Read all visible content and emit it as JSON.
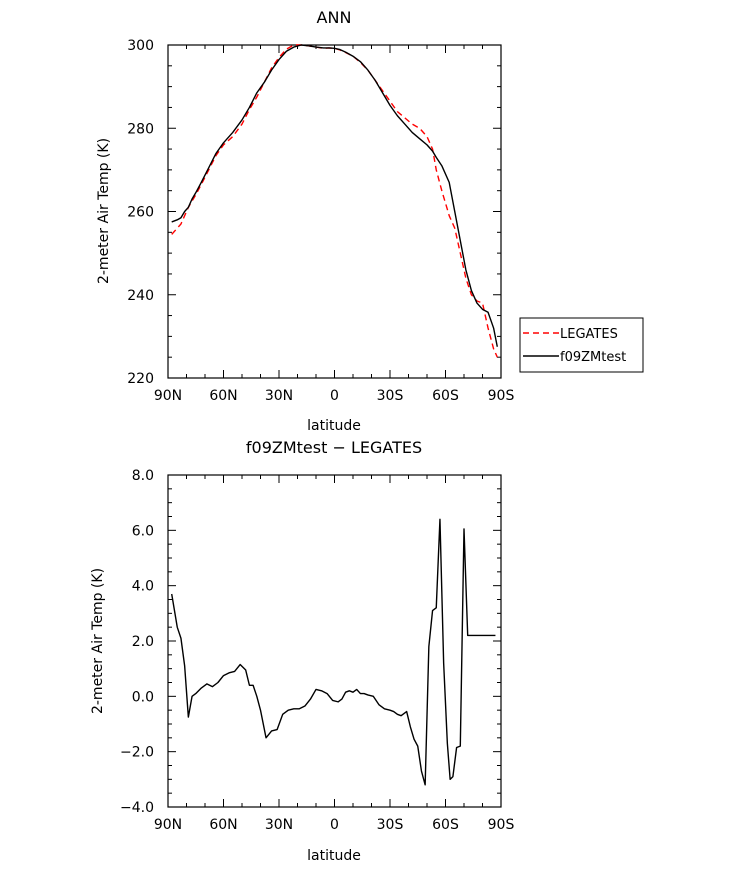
{
  "chart_data": [
    {
      "type": "line",
      "title": "ANN",
      "xlabel": "latitude",
      "ylabel": "2-meter Air Temp (K)",
      "xlim": [
        90,
        -90
      ],
      "ylim": [
        220,
        300
      ],
      "x_ticks": [
        {
          "value": 90,
          "label": "90N"
        },
        {
          "value": 60,
          "label": "60N"
        },
        {
          "value": 30,
          "label": "30N"
        },
        {
          "value": 0,
          "label": "0"
        },
        {
          "value": -30,
          "label": "30S"
        },
        {
          "value": -60,
          "label": "60S"
        },
        {
          "value": -90,
          "label": "90S"
        }
      ],
      "y_ticks": [
        {
          "value": 300,
          "label": "300"
        },
        {
          "value": 280,
          "label": "280"
        },
        {
          "value": 260,
          "label": "260"
        },
        {
          "value": 240,
          "label": "240"
        },
        {
          "value": 220,
          "label": "220"
        }
      ],
      "grid": false,
      "legend": "right",
      "series": [
        {
          "name": "LEGATES",
          "color": "#ff0000",
          "dash": "dashed",
          "x": [
            88,
            85,
            83,
            81,
            79,
            77,
            75,
            72,
            68,
            64,
            60,
            55,
            50,
            46,
            42,
            38,
            34,
            30,
            26,
            22,
            18,
            14,
            10,
            6,
            3,
            0,
            -3,
            -6,
            -10,
            -14,
            -18,
            -22,
            -26,
            -30,
            -34,
            -38,
            -42,
            -46,
            -50,
            -53,
            -55,
            -58,
            -62,
            -65,
            -68,
            -71,
            -74,
            -77,
            -80,
            -83,
            -86,
            -88
          ],
          "y": [
            254.5,
            256,
            257,
            259,
            261,
            262.5,
            264,
            266.5,
            270,
            273.5,
            276,
            278,
            281,
            284.5,
            287.5,
            291,
            294.5,
            297,
            299,
            300,
            300,
            299.8,
            299.5,
            299.2,
            299.3,
            299.2,
            298.8,
            298.2,
            297.3,
            295.8,
            294,
            291.5,
            289,
            286.5,
            284,
            282.5,
            281,
            280,
            278,
            275,
            270,
            265,
            259,
            256,
            250,
            244,
            240,
            238.5,
            238,
            232,
            227,
            225
          ]
        },
        {
          "name": "f09ZMtest",
          "color": "#000000",
          "dash": "solid",
          "x": [
            88,
            85,
            83,
            81,
            79,
            77,
            75,
            72,
            68,
            64,
            60,
            55,
            50,
            46,
            42,
            38,
            34,
            30,
            26,
            22,
            18,
            14,
            10,
            6,
            3,
            0,
            -3,
            -6,
            -10,
            -14,
            -18,
            -22,
            -26,
            -30,
            -34,
            -38,
            -42,
            -46,
            -50,
            -53,
            -55,
            -58,
            -62,
            -65,
            -68,
            -71,
            -74,
            -77,
            -80,
            -83,
            -86,
            -88
          ],
          "y": [
            257.5,
            258,
            258.5,
            260,
            261,
            263,
            264.5,
            267,
            270.5,
            274,
            276.5,
            279,
            282,
            285,
            288.5,
            291,
            294,
            296.5,
            298.5,
            299.5,
            300,
            299.8,
            299.5,
            299.3,
            299.3,
            299.2,
            298.9,
            298.3,
            297.3,
            296,
            294,
            291.5,
            288.5,
            285.5,
            283,
            281,
            279,
            277.5,
            276,
            274.5,
            273,
            271,
            267,
            260,
            253,
            246,
            241,
            238,
            236.5,
            235.8,
            232,
            227.5
          ]
        }
      ]
    },
    {
      "type": "line",
      "title": "f09ZMtest − LEGATES",
      "xlabel": "latitude",
      "ylabel": "2-meter Air Temp (K)",
      "xlim": [
        90,
        -90
      ],
      "ylim": [
        -4,
        8
      ],
      "x_ticks": [
        {
          "value": 90,
          "label": "90N"
        },
        {
          "value": 60,
          "label": "60N"
        },
        {
          "value": 30,
          "label": "30N"
        },
        {
          "value": 0,
          "label": "0"
        },
        {
          "value": -30,
          "label": "30S"
        },
        {
          "value": -60,
          "label": "60S"
        },
        {
          "value": -90,
          "label": "90S"
        }
      ],
      "y_ticks": [
        {
          "value": 8,
          "label": "8.0"
        },
        {
          "value": 6,
          "label": "6.0"
        },
        {
          "value": 4,
          "label": "4.0"
        },
        {
          "value": 2,
          "label": "2.0"
        },
        {
          "value": 0,
          "label": "0.0"
        },
        {
          "value": -2,
          "label": "−2.0"
        },
        {
          "value": -4,
          "label": "−4.0"
        }
      ],
      "grid": false,
      "series": [
        {
          "color": "#000000",
          "dash": "solid",
          "x": [
            88,
            85,
            83,
            81,
            79,
            77,
            75,
            72,
            69,
            66,
            63,
            60,
            57,
            54,
            51,
            48,
            46,
            44,
            42,
            40,
            37,
            34,
            31,
            28,
            25,
            22,
            19,
            16,
            13,
            10,
            7,
            4,
            1,
            -2,
            -4,
            -6,
            -8,
            -10,
            -12,
            -14,
            -16,
            -18,
            -21,
            -24,
            -27,
            -30,
            -32,
            -34,
            -36,
            -39,
            -41,
            -43,
            -45,
            -47,
            -49,
            -51,
            -53,
            -55,
            -57,
            -59,
            -61,
            -62.5,
            -64,
            -66,
            -68,
            -70,
            -72,
            -74,
            -76,
            -79,
            -81,
            -83,
            -85,
            -87
          ],
          "y": [
            3.7,
            2.5,
            2.1,
            1.1,
            -0.75,
            0.0,
            0.1,
            0.3,
            0.45,
            0.35,
            0.5,
            0.75,
            0.85,
            0.9,
            1.15,
            0.95,
            0.4,
            0.4,
            0.0,
            -0.5,
            -1.5,
            -1.25,
            -1.2,
            -0.65,
            -0.5,
            -0.45,
            -0.45,
            -0.35,
            -0.1,
            0.25,
            0.2,
            0.1,
            -0.15,
            -0.2,
            -0.1,
            0.15,
            0.2,
            0.15,
            0.25,
            0.1,
            0.1,
            0.05,
            0.0,
            -0.3,
            -0.45,
            -0.5,
            -0.55,
            -0.65,
            -0.7,
            -0.55,
            -1.1,
            -1.55,
            -1.8,
            -2.7,
            -3.2,
            1.8,
            3.1,
            3.2,
            6.4,
            1.2,
            -1.7,
            -3.0,
            -2.9,
            -1.85,
            -1.8,
            6.05,
            2.2,
            2.2,
            2.2,
            2.2,
            2.2,
            2.2,
            2.2,
            2.2
          ]
        }
      ]
    }
  ]
}
